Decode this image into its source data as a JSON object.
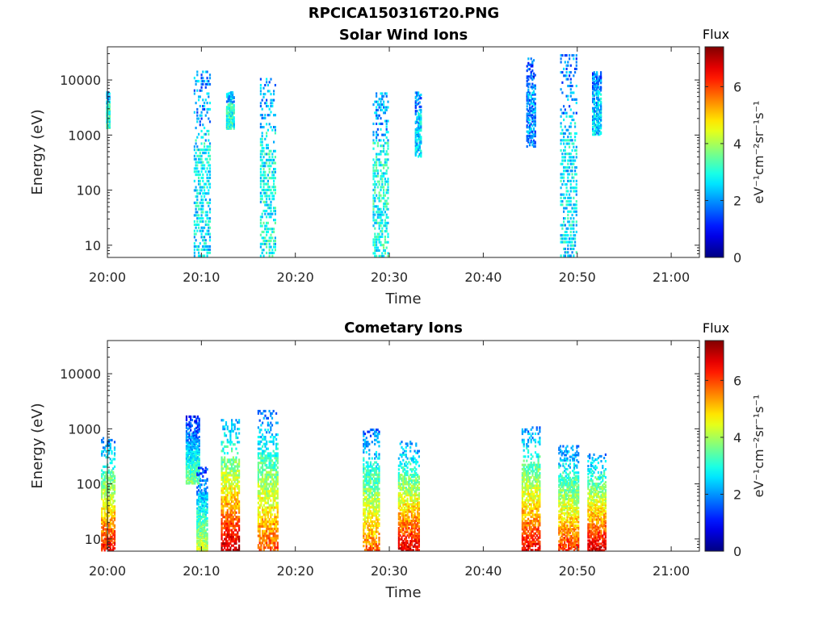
{
  "figure_title": "RPCICA150316T20.PNG",
  "colorbar_palette": [
    "#00007f",
    "#0000ff",
    "#007fff",
    "#00ffff",
    "#7fff7f",
    "#ffff00",
    "#ff7f00",
    "#ff0000",
    "#7f0000"
  ],
  "chart_data": [
    {
      "type": "heatmap",
      "title": "Solar Wind Ions",
      "xlabel": "Time",
      "ylabel": "Energy (eV)",
      "y_scale": "log",
      "xlim": [
        "20:00",
        "21:03"
      ],
      "ylim": [
        6,
        40000
      ],
      "xticks": [
        "20:00",
        "20:10",
        "20:20",
        "20:30",
        "20:40",
        "20:50",
        "21:00"
      ],
      "yticks": [
        {
          "value": 10,
          "label": "10"
        },
        {
          "value": 100,
          "label": "100"
        },
        {
          "value": 1000,
          "label": "1000"
        },
        {
          "value": 10000,
          "label": "10000"
        }
      ],
      "colorbar": {
        "label": "Flux",
        "unit": "eV⁻¹cm⁻²sr⁻¹s⁻¹",
        "range": [
          0,
          7.4
        ],
        "ticks": [
          "0",
          "2",
          "4",
          "6"
        ]
      },
      "bursts": [
        {
          "time": "20:00",
          "e_lo": 1300,
          "e_hi": 6000,
          "flux": 3.0,
          "width_min": 0.4
        },
        {
          "time": "20:10",
          "e_lo": 6,
          "e_hi": 15000,
          "flux": 2.7,
          "width_min": 1.8
        },
        {
          "time": "20:13",
          "e_lo": 1300,
          "e_hi": 6000,
          "flux": 3.0,
          "width_min": 0.9
        },
        {
          "time": "20:17",
          "e_lo": 6,
          "e_hi": 11000,
          "flux": 2.8,
          "width_min": 1.7
        },
        {
          "time": "20:29",
          "e_lo": 6,
          "e_hi": 6000,
          "flux": 2.9,
          "width_min": 1.7
        },
        {
          "time": "20:33",
          "e_lo": 400,
          "e_hi": 6000,
          "flux": 2.5,
          "width_min": 0.7
        },
        {
          "time": "20:45",
          "e_lo": 600,
          "e_hi": 25000,
          "flux": 2.0,
          "width_min": 1.0
        },
        {
          "time": "20:49",
          "e_lo": 6,
          "e_hi": 30000,
          "flux": 2.6,
          "width_min": 1.8
        },
        {
          "time": "20:52",
          "e_lo": 1000,
          "e_hi": 14000,
          "flux": 2.4,
          "width_min": 1.0
        }
      ]
    },
    {
      "type": "heatmap",
      "title": "Cometary Ions",
      "xlabel": "Time",
      "ylabel": "Energy (eV)",
      "y_scale": "log",
      "xlim": [
        "20:00",
        "21:03"
      ],
      "ylim": [
        6,
        40000
      ],
      "xticks": [
        "20:00",
        "20:10",
        "20:20",
        "20:30",
        "20:40",
        "20:50",
        "21:00"
      ],
      "yticks": [
        {
          "value": 10,
          "label": "10"
        },
        {
          "value": 100,
          "label": "100"
        },
        {
          "value": 1000,
          "label": "1000"
        },
        {
          "value": 10000,
          "label": "10000"
        }
      ],
      "colorbar": {
        "label": "Flux",
        "unit": "eV⁻¹cm⁻²sr⁻¹s⁻¹",
        "range": [
          0,
          7.4
        ],
        "ticks": [
          "0",
          "2",
          "4",
          "6"
        ]
      },
      "bursts": [
        {
          "time": "20:00",
          "e_lo": 6,
          "e_hi": 700,
          "flux": 5.2,
          "width_min": 1.5
        },
        {
          "time": "20:09",
          "e_lo": 100,
          "e_hi": 1700,
          "flux": 3.0,
          "width_min": 1.5
        },
        {
          "time": "20:10",
          "e_lo": 6,
          "e_hi": 200,
          "flux": 3.5,
          "width_min": 1.2
        },
        {
          "time": "20:13",
          "e_lo": 6,
          "e_hi": 1500,
          "flux": 5.6,
          "width_min": 2.0
        },
        {
          "time": "20:17",
          "e_lo": 6,
          "e_hi": 2200,
          "flux": 4.8,
          "width_min": 2.2
        },
        {
          "time": "20:28",
          "e_lo": 6,
          "e_hi": 1000,
          "flux": 4.6,
          "width_min": 1.8
        },
        {
          "time": "20:32",
          "e_lo": 6,
          "e_hi": 600,
          "flux": 5.4,
          "width_min": 2.3
        },
        {
          "time": "20:45",
          "e_lo": 6,
          "e_hi": 1100,
          "flux": 5.3,
          "width_min": 2.0
        },
        {
          "time": "20:49",
          "e_lo": 6,
          "e_hi": 500,
          "flux": 5.0,
          "width_min": 2.2
        },
        {
          "time": "20:52",
          "e_lo": 6,
          "e_hi": 350,
          "flux": 5.5,
          "width_min": 2.0
        }
      ]
    }
  ]
}
